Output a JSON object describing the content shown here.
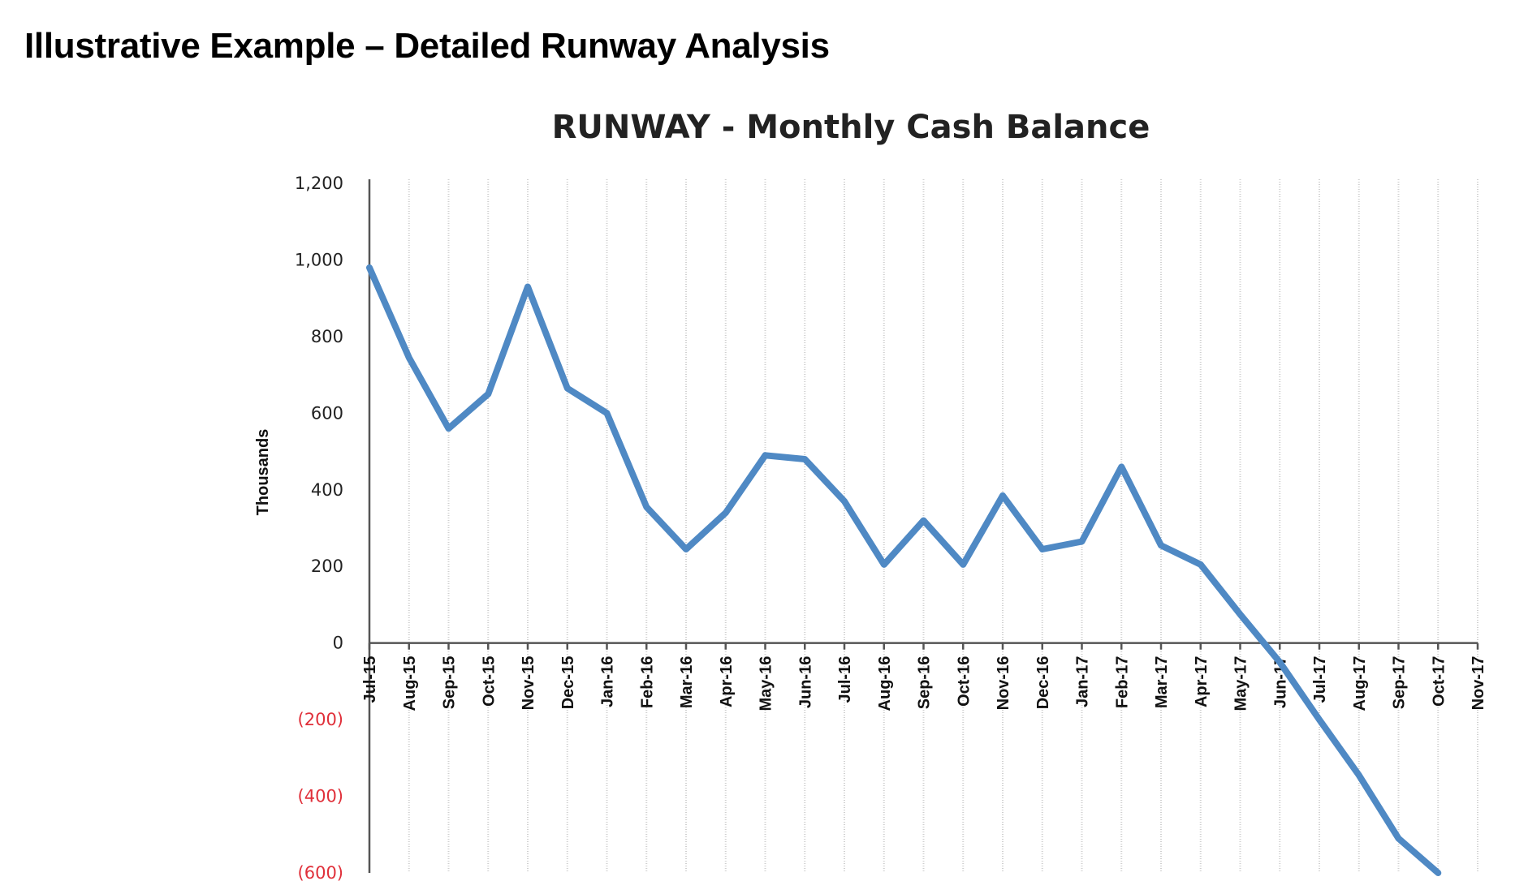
{
  "heading": "Illustrative Example – Detailed Runway Analysis",
  "chart_data": {
    "type": "line",
    "title": "RUNWAY - Monthly Cash Balance",
    "ylabel": "Thousands",
    "xlabel": "",
    "ylim": [
      -600,
      1200
    ],
    "yticks": [
      {
        "value": 1200,
        "label": "1,200"
      },
      {
        "value": 1000,
        "label": "1,000"
      },
      {
        "value": 800,
        "label": "800"
      },
      {
        "value": 600,
        "label": "600"
      },
      {
        "value": 400,
        "label": "400"
      },
      {
        "value": 200,
        "label": "200"
      },
      {
        "value": 0,
        "label": "0"
      },
      {
        "value": -200,
        "label": "(200)"
      },
      {
        "value": -400,
        "label": "(400)"
      },
      {
        "value": -600,
        "label": "(600)"
      }
    ],
    "negative_tick_color": "#e0303a",
    "line_color": "#4f89c4",
    "categories": [
      "Jul-15",
      "Aug-15",
      "Sep-15",
      "Oct-15",
      "Nov-15",
      "Dec-15",
      "Jan-16",
      "Feb-16",
      "Mar-16",
      "Apr-16",
      "May-16",
      "Jun-16",
      "Jul-16",
      "Aug-16",
      "Sep-16",
      "Oct-16",
      "Nov-16",
      "Dec-16",
      "Jan-17",
      "Feb-17",
      "Mar-17",
      "Apr-17",
      "May-17",
      "Jun-17",
      "Jul-17",
      "Aug-17",
      "Sep-17",
      "Oct-17",
      "Nov-17"
    ],
    "series": [
      {
        "values": [
          980,
          745,
          560,
          650,
          930,
          665,
          600,
          355,
          245,
          340,
          490,
          480,
          370,
          205,
          320,
          205,
          385,
          245,
          265,
          460,
          255,
          205,
          75,
          -50,
          -200,
          -345,
          -510,
          -600,
          null
        ]
      }
    ],
    "vertical_grid": true
  }
}
